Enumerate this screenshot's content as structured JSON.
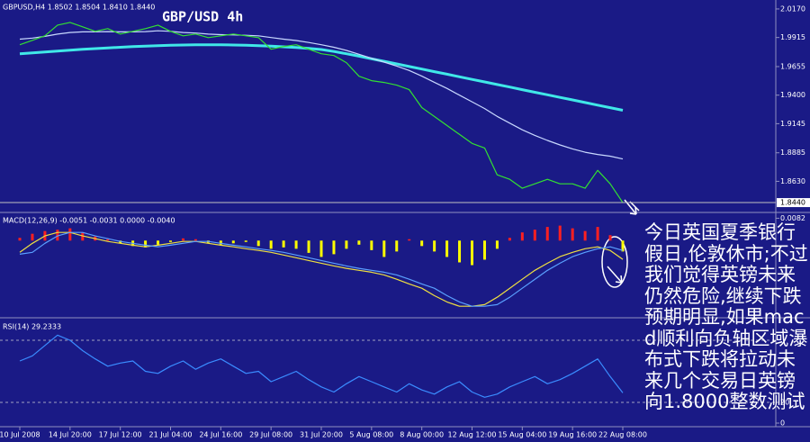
{
  "chart_data": [
    {
      "type": "line",
      "title": "GBP/USD 4h",
      "header_label": "GBPUSD,H4  1.8502 1.8504 1.8410 1.8440",
      "annotation": "今日英国夏季银行假日,伦敦休市;不过我们觉得英镑未来仍然危险,继续下跌预期明显,如果macd顺利向负轴区域瀑布式下跌将拉动未来几个交易日英镑向1.8000整数测试",
      "ylim": [
        1.836,
        2.025
      ],
      "yticks": [
        {
          "value": 2.017,
          "label": "2.0170"
        },
        1.9915,
        1.9655,
        {
          "value": 1.94,
          "label": "1.9400"
        },
        1.9145,
        1.8885,
        {
          "value": 1.863,
          "label": "1.8630"
        }
      ],
      "current_price": {
        "value": 1.844,
        "label": "1.8440"
      },
      "series": [
        {
          "color": "#40e8e8",
          "values": [
            1.977,
            1.9778,
            1.9786,
            1.9794,
            1.9802,
            1.981,
            1.9816,
            1.9822,
            1.9828,
            1.9834,
            1.9838,
            1.9842,
            1.9846,
            1.9848,
            1.985,
            1.985,
            1.985,
            1.9848,
            1.9846,
            1.9842,
            1.9838,
            1.9832,
            1.9826,
            1.9818,
            1.9808,
            1.979,
            1.977,
            1.9748,
            1.9725,
            1.9702,
            1.9679,
            1.9656,
            1.9633,
            1.961,
            1.9587,
            1.9564,
            1.9541,
            1.9518,
            1.9495,
            1.9472,
            1.9449,
            1.9426,
            1.9403,
            1.938,
            1.9357,
            1.9334,
            1.9311,
            1.9288,
            1.9265
          ]
        },
        {
          "color": "#c8d8ff",
          "values": [
            1.99,
            1.991,
            1.9925,
            1.9945,
            1.996,
            1.9965,
            1.9965,
            1.9968,
            1.9965,
            1.9965,
            1.9968,
            1.9975,
            1.997,
            1.996,
            1.9955,
            1.9945,
            1.994,
            1.9938,
            1.9935,
            1.993,
            1.9915,
            1.99,
            1.9888,
            1.987,
            1.985,
            1.9828,
            1.98,
            1.9765,
            1.973,
            1.9695,
            1.966,
            1.962,
            1.957,
            1.9515,
            1.946,
            1.94,
            1.934,
            1.928,
            1.921,
            1.915,
            1.909,
            1.904,
            1.8995,
            1.8955,
            1.892,
            1.889,
            1.887,
            1.8855,
            1.883
          ]
        },
        {
          "color": "#32e032",
          "values": [
            1.985,
            1.989,
            1.993,
            2.0026,
            2.005,
            2.001,
            1.997,
            1.9994,
            1.9946,
            1.997,
            1.9994,
            2.0026,
            1.997,
            1.993,
            1.9946,
            1.9914,
            1.993,
            1.9946,
            1.993,
            1.9914,
            1.981,
            1.9834,
            1.985,
            1.981,
            1.977,
            1.9754,
            1.969,
            1.9569,
            1.9529,
            1.9513,
            1.9489,
            1.9449,
            1.9289,
            1.9209,
            1.9129,
            1.9049,
            1.8969,
            1.8928,
            1.8688,
            1.8648,
            1.8568,
            1.8608,
            1.8648,
            1.8608,
            1.8608,
            1.8568,
            1.8728,
            1.8608,
            1.844
          ]
        }
      ]
    },
    {
      "type": "bar",
      "label": "MACD(12,26,9) -0.0051 -0.0031 0.0000 -0.0040",
      "ylim": [
        -0.028,
        0.01
      ],
      "yticks": [
        0.0082
      ],
      "color_up": "#ff2020",
      "color_down": "#ffff00",
      "values": [
        0.001,
        0.0025,
        0.0035,
        0.004,
        0.0045,
        0.003,
        0.0015,
        0.0005,
        -0.001,
        -0.002,
        -0.0025,
        -0.0015,
        -0.0005,
        0.0008,
        0.0005,
        -0.0008,
        -0.0015,
        -0.001,
        -0.0005,
        -0.002,
        -0.003,
        -0.0025,
        -0.003,
        -0.0045,
        -0.006,
        -0.005,
        -0.003,
        -0.0015,
        -0.0035,
        -0.006,
        -0.004,
        0.0005,
        -0.002,
        -0.004,
        -0.006,
        -0.008,
        -0.009,
        -0.007,
        -0.003,
        0.001,
        0.003,
        0.004,
        0.005,
        0.0055,
        0.0045,
        0.0035,
        0.005,
        0.002,
        -0.004
      ],
      "series": [
        {
          "color": "#f0e040",
          "values": [
            -0.0043,
            -0.001,
            0.0017,
            0.003,
            0.003,
            0.0017,
            0.0007,
            -0.0003,
            -0.001,
            -0.0017,
            -0.0023,
            -0.0017,
            -0.001,
            -0.0003,
            -0.0003,
            -0.001,
            -0.0017,
            -0.0023,
            -0.003,
            -0.0036,
            -0.0043,
            -0.0053,
            -0.0063,
            -0.0073,
            -0.0083,
            -0.0093,
            -0.0102,
            -0.0109,
            -0.0116,
            -0.0126,
            -0.0142,
            -0.0159,
            -0.0175,
            -0.0202,
            -0.0225,
            -0.0241,
            -0.0241,
            -0.0235,
            -0.0208,
            -0.0175,
            -0.0142,
            -0.0109,
            -0.0083,
            -0.0059,
            -0.0043,
            -0.003,
            -0.0023,
            -0.0036,
            -0.0069
          ]
        },
        {
          "color": "#5aa0ff",
          "values": [
            -0.005,
            -0.0043,
            -0.001,
            0.0017,
            0.003,
            0.003,
            0.0017,
            0.0007,
            -0.0003,
            -0.001,
            -0.0017,
            -0.0023,
            -0.0017,
            -0.001,
            -0.0003,
            -0.0003,
            -0.001,
            -0.0017,
            -0.0023,
            -0.003,
            -0.0036,
            -0.0043,
            -0.0053,
            -0.0063,
            -0.0073,
            -0.0083,
            -0.0093,
            -0.0102,
            -0.0109,
            -0.0116,
            -0.0126,
            -0.0142,
            -0.0159,
            -0.0175,
            -0.0202,
            -0.0225,
            -0.0241,
            -0.0241,
            -0.0235,
            -0.0208,
            -0.0175,
            -0.0142,
            -0.0109,
            -0.0083,
            -0.0059,
            -0.0043,
            -0.003,
            -0.0023,
            -0.0036
          ]
        }
      ]
    },
    {
      "type": "line",
      "label": "RSI(14) 29.2333",
      "ylim": [
        0,
        100
      ],
      "yticks": [
        20,
        0
      ],
      "levels": [
        20,
        80
      ],
      "categories": [
        "10 Jul 2008",
        null,
        null,
        null,
        "14 Jul 20:00",
        null,
        null,
        null,
        "17 Jul 12:00",
        null,
        null,
        null,
        "21 Jul 04:00",
        null,
        null,
        null,
        "24 Jul 16:00",
        null,
        null,
        null,
        "29 Jul 08:00",
        null,
        null,
        null,
        "31 Jul 20:00",
        null,
        null,
        null,
        "5 Aug 08:00",
        null,
        null,
        null,
        "8 Aug 00:00",
        null,
        null,
        null,
        "12 Aug 12:00",
        null,
        null,
        null,
        "15 Aug 04:00",
        null,
        null,
        null,
        "19 Aug 16:00",
        null,
        null,
        null,
        "22 Aug 08:00"
      ],
      "series": [
        {
          "color": "#3a8cff",
          "values": [
            60,
            65,
            75,
            85,
            80,
            70,
            62,
            55,
            58,
            60,
            50,
            48,
            55,
            60,
            52,
            58,
            62,
            55,
            48,
            50,
            40,
            45,
            50,
            42,
            35,
            30,
            38,
            45,
            40,
            35,
            30,
            38,
            32,
            28,
            35,
            40,
            30,
            25,
            28,
            35,
            40,
            45,
            38,
            42,
            48,
            55,
            62,
            45,
            29.2333
          ]
        }
      ]
    }
  ]
}
